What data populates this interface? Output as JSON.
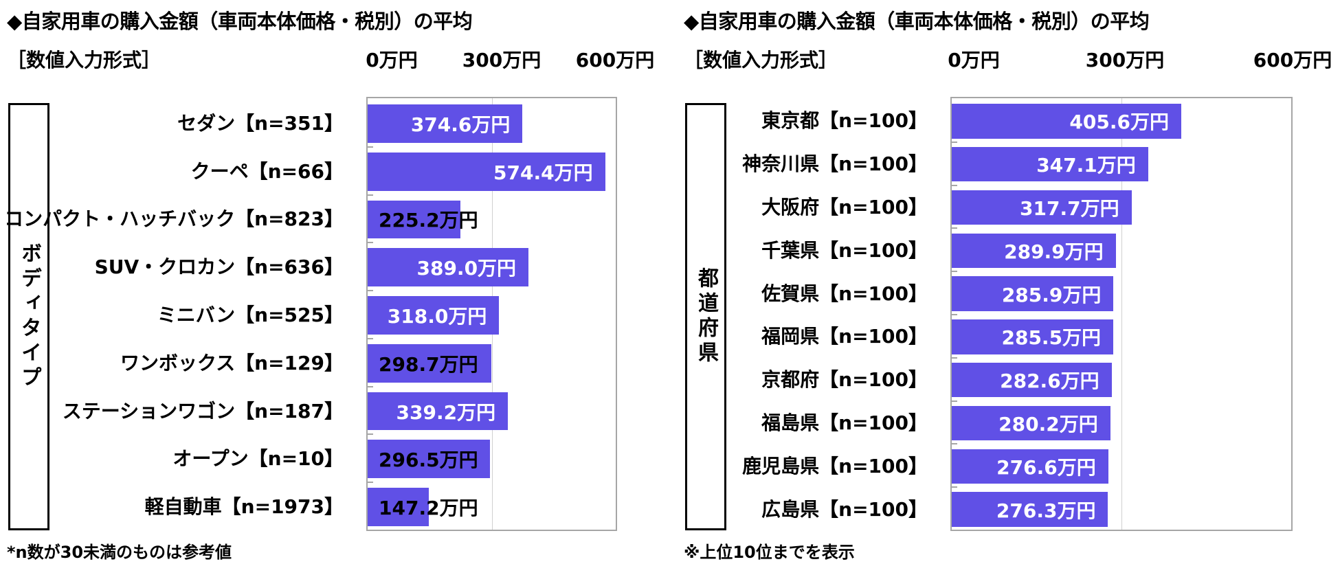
{
  "chart_data": [
    {
      "type": "bar",
      "orientation": "horizontal",
      "title": "◆自家用車の購入金額（車両本体価格・税別）の平均",
      "subtitle": "［数値入力形式］",
      "group_label": "ボディタイプ",
      "xlim": [
        0,
        600
      ],
      "tick_labels": [
        "0万円",
        "300万円",
        "600万円"
      ],
      "tick_values": [
        0,
        300,
        600
      ],
      "categories": [
        "セダン【n=351】",
        "クーペ【n=66】",
        "コンパクト・ハッチバック【n=823】",
        "SUV・クロカン【n=636】",
        "ミニバン【n=525】",
        "ワンボックス【n=129】",
        "ステーションワゴン【n=187】",
        "オープン【n=10】",
        "軽自動車【n=1973】"
      ],
      "values": [
        374.6,
        574.4,
        225.2,
        389.0,
        318.0,
        298.7,
        339.2,
        296.5,
        147.2
      ],
      "value_labels": [
        "374.6万円",
        "574.4万円",
        "225.2万円",
        "389.0万円",
        "318.0万円",
        "298.7万円",
        "339.2万円",
        "296.5万円",
        "147.2万円"
      ],
      "footnote": "*n数が30未満のものは参考値",
      "bar_color": "#6050e6"
    },
    {
      "type": "bar",
      "orientation": "horizontal",
      "title": "◆自家用車の購入金額（車両本体価格・税別）の平均",
      "subtitle": "［数値入力形式］",
      "group_label": "都道府県",
      "xlim": [
        0,
        600
      ],
      "tick_labels": [
        "0万円",
        "300万円",
        "600万円"
      ],
      "tick_values": [
        0,
        300,
        600
      ],
      "categories": [
        "東京都【n=100】",
        "神奈川県【n=100】",
        "大阪府【n=100】",
        "千葉県【n=100】",
        "佐賀県【n=100】",
        "福岡県【n=100】",
        "京都府【n=100】",
        "福島県【n=100】",
        "鹿児島県【n=100】",
        "広島県【n=100】"
      ],
      "values": [
        405.6,
        347.1,
        317.7,
        289.9,
        285.9,
        285.5,
        282.6,
        280.2,
        276.6,
        276.3
      ],
      "value_labels": [
        "405.6万円",
        "347.1万円",
        "317.7万円",
        "289.9万円",
        "285.9万円",
        "285.5万円",
        "282.6万円",
        "280.2万円",
        "276.6万円",
        "276.3万円"
      ],
      "footnote": "※上位10位までを表示",
      "bar_color": "#6050e6"
    }
  ]
}
